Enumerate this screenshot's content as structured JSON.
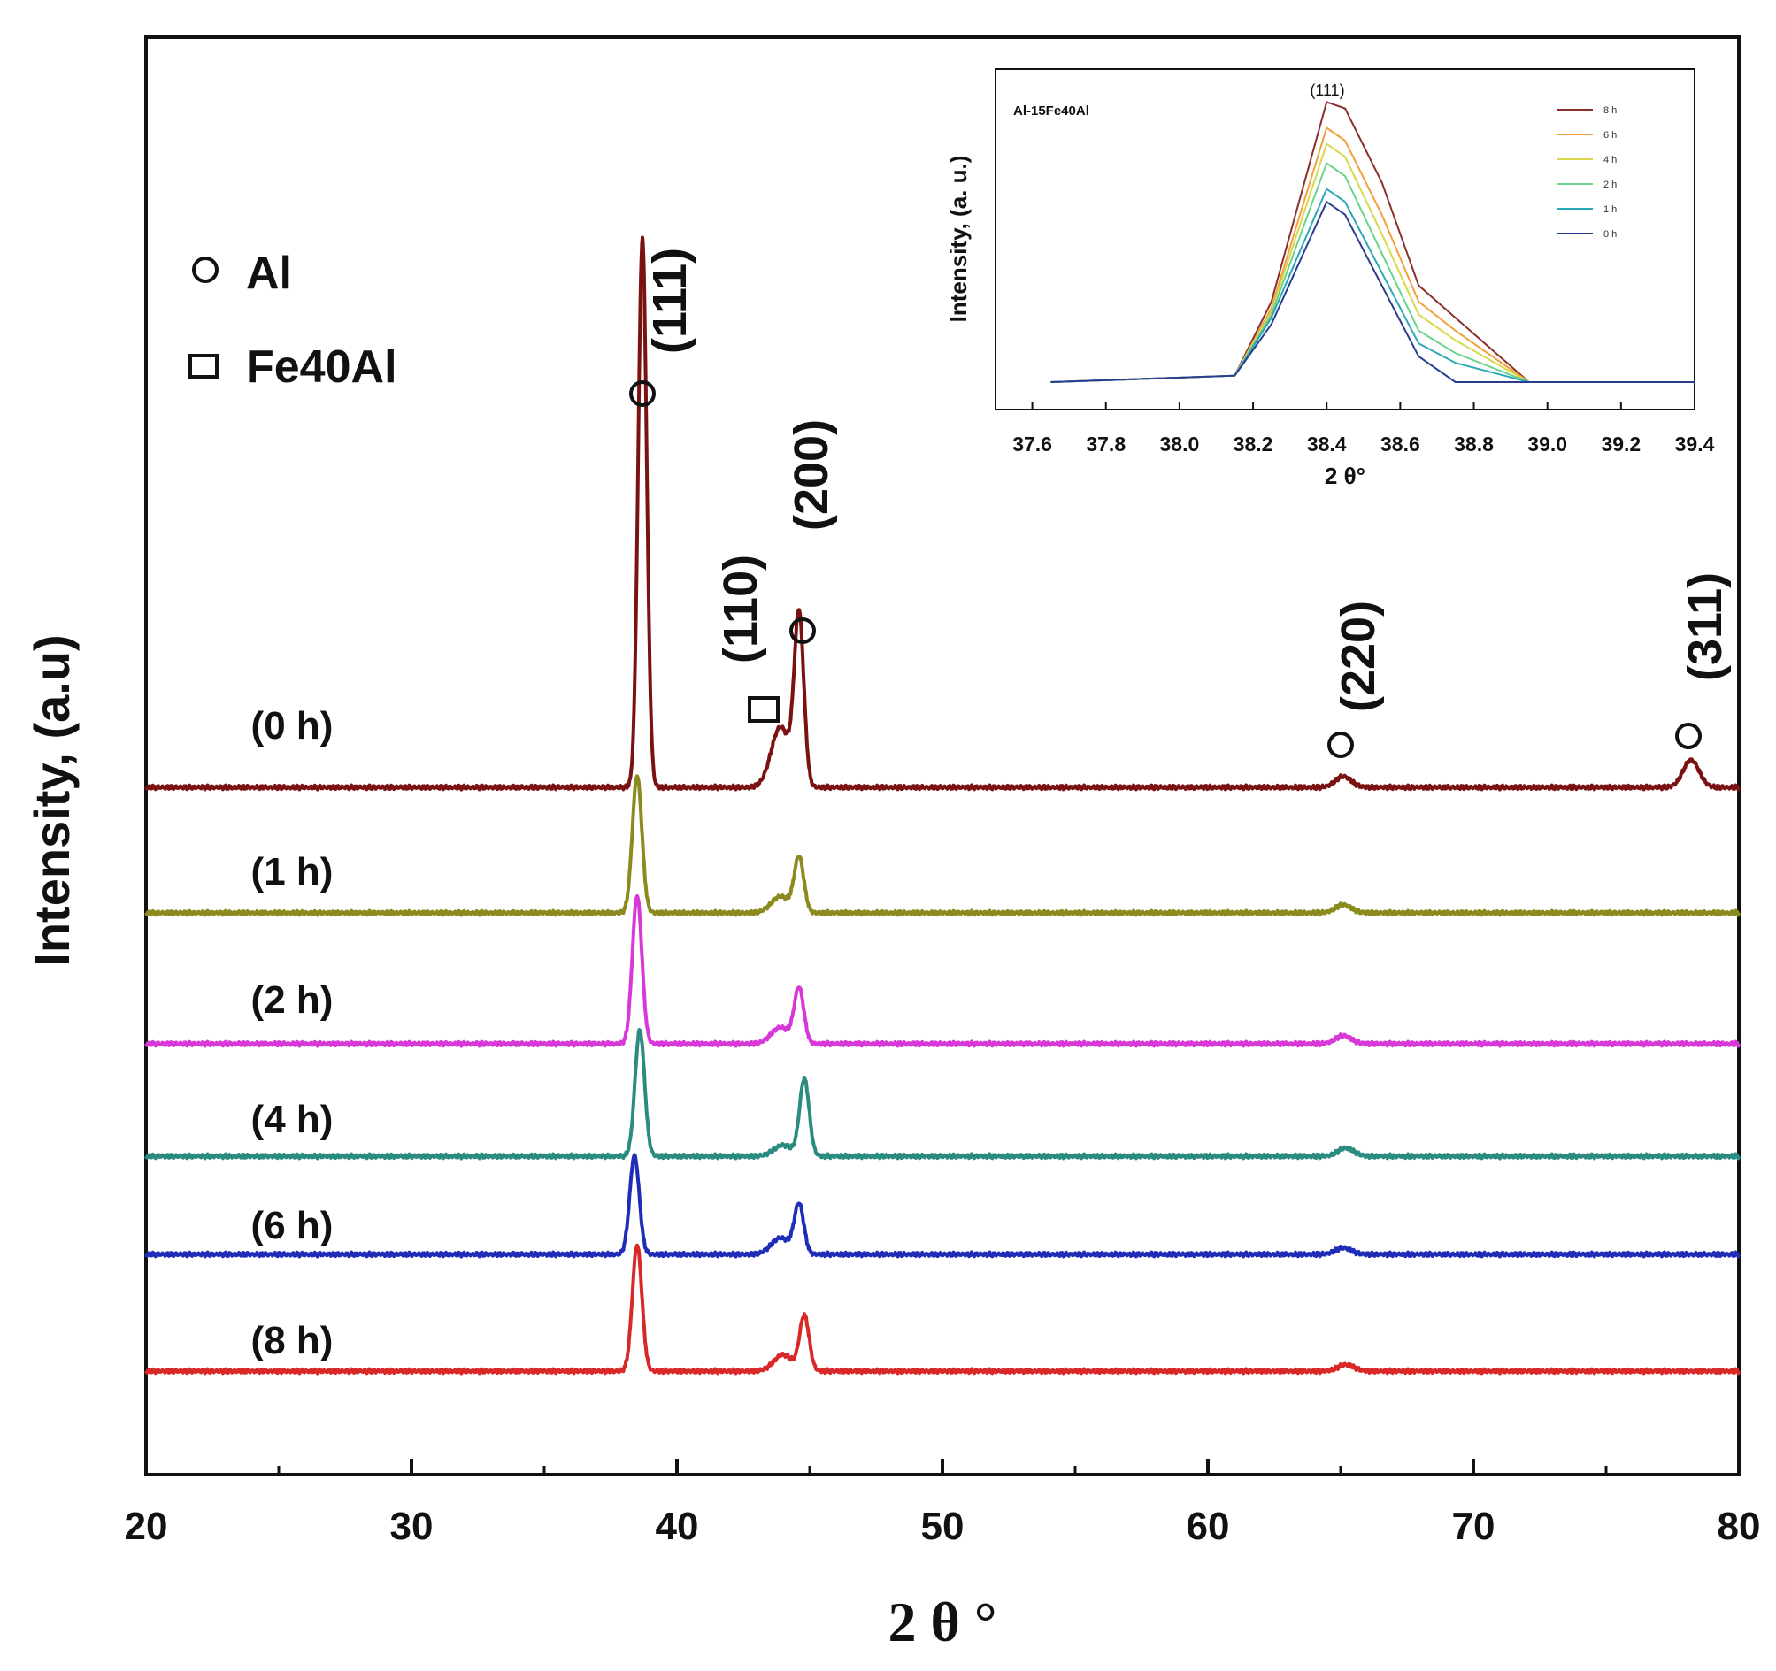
{
  "chart_data": [
    {
      "type": "line",
      "subtype": "stacked-xrd-patterns",
      "title": "",
      "xlabel": "2 θ °",
      "ylabel": "Intensity, (a.u)",
      "xlim": [
        20,
        80
      ],
      "xticks": [
        "20",
        "30",
        "40",
        "50",
        "60",
        "70",
        "80"
      ],
      "grid": false,
      "series": [
        {
          "name": "(0 h)",
          "label": "(0 h)",
          "color": "#7a1212",
          "baseline_rank": 6,
          "peaks": [
            {
              "x": 38.7,
              "height": 1.0,
              "width": 0.16
            },
            {
              "x": 43.9,
              "height": 0.11,
              "width": 0.35
            },
            {
              "x": 44.6,
              "height": 0.31,
              "width": 0.18
            },
            {
              "x": 65.1,
              "height": 0.02,
              "width": 0.3
            },
            {
              "x": 78.2,
              "height": 0.05,
              "width": 0.3
            }
          ]
        },
        {
          "name": "(1 h)",
          "label": "(1 h)",
          "color": "#8a8a1e",
          "baseline_rank": 5,
          "peaks": [
            {
              "x": 38.5,
              "height": 0.25,
              "width": 0.18
            },
            {
              "x": 43.9,
              "height": 0.03,
              "width": 0.35
            },
            {
              "x": 44.6,
              "height": 0.1,
              "width": 0.18
            },
            {
              "x": 65.1,
              "height": 0.015,
              "width": 0.3
            }
          ]
        },
        {
          "name": "(2 h)",
          "label": "(2 h)",
          "color": "#d838d8",
          "baseline_rank": 4,
          "peaks": [
            {
              "x": 38.5,
              "height": 0.27,
              "width": 0.18
            },
            {
              "x": 43.9,
              "height": 0.03,
              "width": 0.35
            },
            {
              "x": 44.6,
              "height": 0.1,
              "width": 0.18
            },
            {
              "x": 65.1,
              "height": 0.015,
              "width": 0.3
            }
          ]
        },
        {
          "name": "(4 h)",
          "label": "(4 h)",
          "color": "#2a8c80",
          "baseline_rank": 3,
          "peaks": [
            {
              "x": 38.6,
              "height": 0.23,
              "width": 0.18
            },
            {
              "x": 44.0,
              "height": 0.02,
              "width": 0.35
            },
            {
              "x": 44.8,
              "height": 0.14,
              "width": 0.18
            },
            {
              "x": 65.2,
              "height": 0.015,
              "width": 0.3
            }
          ]
        },
        {
          "name": "(6 h)",
          "label": "(6 h)",
          "color": "#1e2cb8",
          "baseline_rank": 2,
          "peaks": [
            {
              "x": 38.4,
              "height": 0.18,
              "width": 0.18
            },
            {
              "x": 43.9,
              "height": 0.03,
              "width": 0.35
            },
            {
              "x": 44.6,
              "height": 0.09,
              "width": 0.18
            },
            {
              "x": 65.1,
              "height": 0.012,
              "width": 0.3
            }
          ]
        },
        {
          "name": "(8 h)",
          "label": "(8 h)",
          "color": "#d82828",
          "baseline_rank": 1,
          "peaks": [
            {
              "x": 38.5,
              "height": 0.23,
              "width": 0.18
            },
            {
              "x": 44.0,
              "height": 0.03,
              "width": 0.35
            },
            {
              "x": 44.8,
              "height": 0.1,
              "width": 0.18
            },
            {
              "x": 65.2,
              "height": 0.012,
              "width": 0.3
            }
          ]
        }
      ],
      "annotations": [
        {
          "text": "(111)",
          "marker": "circle",
          "x": 38.7
        },
        {
          "text": "(110)",
          "marker": "square",
          "x": 43.5
        },
        {
          "text": "(200)",
          "marker": "circle",
          "x": 44.8
        },
        {
          "text": "(220)",
          "marker": "circle",
          "x": 65.0
        },
        {
          "text": "(311)",
          "marker": "circle",
          "x": 78.0
        }
      ],
      "legend": {
        "position": "top-left",
        "entries": [
          {
            "marker": "circle",
            "label": "Al"
          },
          {
            "marker": "square",
            "label": "Fe40Al"
          }
        ]
      }
    },
    {
      "type": "line",
      "title": "Al-15Fe40Al",
      "peak_label": "(111)",
      "xlabel": "2 θ°",
      "ylabel": "Intensity, (a. u.)",
      "xlim": [
        37.5,
        39.4
      ],
      "ylim": [
        0,
        100
      ],
      "xticks": [
        "37.6",
        "37.8",
        "38.0",
        "38.2",
        "38.4",
        "38.6",
        "38.8",
        "39.0",
        "39.2",
        "39.4"
      ],
      "legend_position": "top-right",
      "x": [
        37.65,
        38.15,
        38.25,
        38.4,
        38.45,
        38.55,
        38.65,
        38.75,
        38.95,
        39.4
      ],
      "series": [
        {
          "name": "8 h",
          "color": "#8b2e2e",
          "values": [
            0,
            2,
            25,
            87,
            85,
            62,
            30,
            20,
            0,
            0
          ]
        },
        {
          "name": "6 h",
          "color": "#f2a03a",
          "values": [
            0,
            2,
            23,
            79,
            75,
            52,
            25,
            16,
            0,
            0
          ]
        },
        {
          "name": "4 h",
          "color": "#d8d84a",
          "values": [
            0,
            2,
            22,
            74,
            70,
            46,
            21,
            13,
            0,
            0
          ]
        },
        {
          "name": "2 h",
          "color": "#6ad48a",
          "values": [
            0,
            2,
            21,
            68,
            64,
            40,
            16,
            9,
            0,
            0
          ]
        },
        {
          "name": "1 h",
          "color": "#2aa8b8",
          "values": [
            0,
            2,
            20,
            60,
            56,
            34,
            12,
            6,
            0,
            0
          ]
        },
        {
          "name": "0 h",
          "color": "#2a3c90",
          "values": [
            0,
            2,
            18,
            56,
            52,
            30,
            8,
            0,
            0,
            0
          ]
        }
      ]
    }
  ]
}
